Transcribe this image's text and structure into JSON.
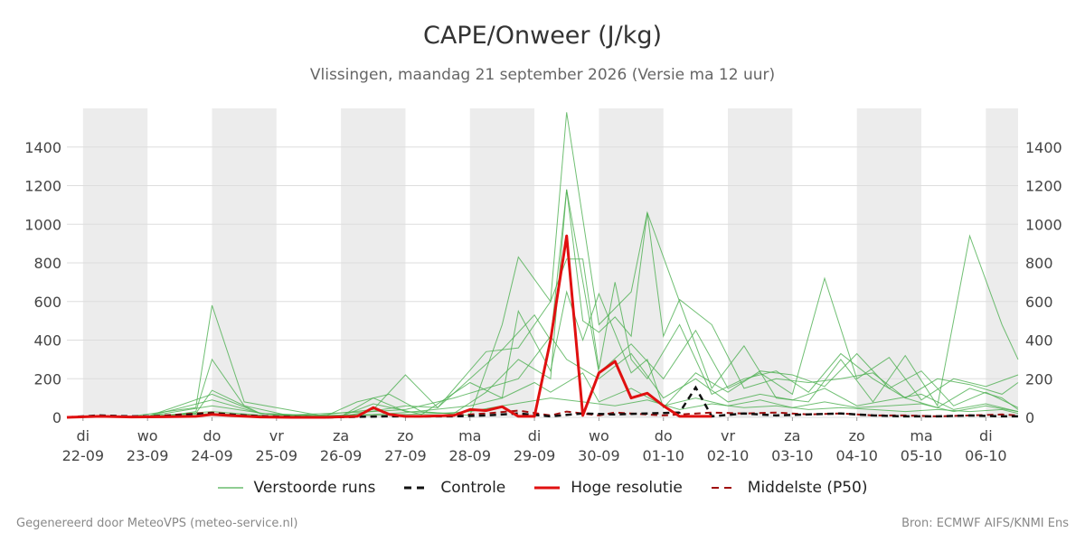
{
  "header": {
    "title": "CAPE/Onweer (J/kg)",
    "subtitle": "Vlissingen, maandag 21 september 2026 (Versie ma 12 uur)"
  },
  "footer": {
    "left": "Gegenereerd door MeteoVPS (meteo-service.nl)",
    "right": "Bron: ECMWF AIFS/KNMI Ens"
  },
  "colors": {
    "ensemble": "#4caf50",
    "control": "#111111",
    "high_res": "#e01010",
    "median": "#a01010",
    "night_band": "#ececec",
    "grid": "#dddddd"
  },
  "chart_data": {
    "type": "line",
    "title": "CAPE/Onweer (J/kg)",
    "subtitle": "Vlissingen, maandag 21 september 2026 (Versie ma 12 uur)",
    "x_unit": "days after 22-09 00:00",
    "xlim": [
      -0.25,
      14.5
    ],
    "ylim": [
      0,
      1600
    ],
    "yticks": [
      0,
      200,
      400,
      600,
      800,
      1000,
      1200,
      1400
    ],
    "grid": true,
    "legend_position": "bottom",
    "shaded_day_intervals": [
      [
        0,
        1
      ],
      [
        2,
        3
      ],
      [
        4,
        5
      ],
      [
        6,
        7
      ],
      [
        8,
        9
      ],
      [
        10,
        11
      ],
      [
        12,
        13
      ],
      [
        14,
        15
      ]
    ],
    "x_tick_labels": [
      {
        "day": "di",
        "date": "22-09"
      },
      {
        "day": "wo",
        "date": "23-09"
      },
      {
        "day": "do",
        "date": "24-09"
      },
      {
        "day": "vr",
        "date": "25-09"
      },
      {
        "day": "za",
        "date": "26-09"
      },
      {
        "day": "zo",
        "date": "27-09"
      },
      {
        "day": "ma",
        "date": "28-09"
      },
      {
        "day": "di",
        "date": "29-09"
      },
      {
        "day": "wo",
        "date": "30-09"
      },
      {
        "day": "do",
        "date": "01-10"
      },
      {
        "day": "vr",
        "date": "02-10"
      },
      {
        "day": "za",
        "date": "03-10"
      },
      {
        "day": "zo",
        "date": "04-10"
      },
      {
        "day": "ma",
        "date": "05-10"
      },
      {
        "day": "di",
        "date": "06-10"
      }
    ],
    "legend": [
      {
        "key": "ensemble",
        "label": "Verstoorde runs"
      },
      {
        "key": "control",
        "label": "Controle"
      },
      {
        "key": "high_res",
        "label": "Hoge resolutie"
      },
      {
        "key": "median",
        "label": "Middelste (P50)"
      }
    ],
    "series": [
      {
        "name": "Hoge resolutie",
        "style": "high_res",
        "x": [
          -0.25,
          0.25,
          0.75,
          1.25,
          1.75,
          2.0,
          2.25,
          2.75,
          3.25,
          3.75,
          4.25,
          4.5,
          4.75,
          5.0,
          5.25,
          5.75,
          6.0,
          6.25,
          6.5,
          6.75,
          7.0,
          7.25,
          7.5,
          7.75,
          8.0,
          8.25,
          8.5,
          8.75,
          9.0,
          9.25,
          9.5,
          9.75
        ],
        "y": [
          0,
          5,
          2,
          3,
          5,
          15,
          10,
          2,
          0,
          0,
          5,
          50,
          15,
          5,
          5,
          10,
          40,
          35,
          55,
          5,
          5,
          400,
          940,
          10,
          230,
          290,
          100,
          125,
          60,
          5,
          5,
          5
        ]
      },
      {
        "name": "Controle",
        "style": "control",
        "x": [
          -0.25,
          0.25,
          0.75,
          1.25,
          2.0,
          2.75,
          3.75,
          4.75,
          5.75,
          6.25,
          6.75,
          7.25,
          7.75,
          8.25,
          8.75,
          9.25,
          9.5,
          9.75,
          10.25,
          10.75,
          11.25,
          11.75,
          12.25,
          12.75,
          13.25,
          13.75,
          14.25,
          14.5
        ],
        "y": [
          0,
          10,
          5,
          5,
          20,
          5,
          0,
          5,
          5,
          10,
          20,
          5,
          20,
          15,
          20,
          25,
          155,
          5,
          20,
          10,
          15,
          20,
          10,
          5,
          5,
          10,
          5,
          5
        ]
      },
      {
        "name": "Middelste (P50)",
        "style": "median",
        "x": [
          -0.25,
          0.25,
          1.0,
          2.0,
          2.5,
          3.5,
          4.5,
          5.5,
          6.25,
          6.75,
          7.25,
          7.5,
          8.0,
          8.25,
          9.0,
          9.75,
          10.25,
          10.75,
          11.25,
          11.75,
          12.25,
          12.75,
          13.25,
          13.75,
          14.25,
          14.5
        ],
        "y": [
          0,
          5,
          5,
          25,
          10,
          0,
          5,
          5,
          20,
          35,
          10,
          30,
          10,
          25,
          10,
          25,
          20,
          25,
          15,
          20,
          10,
          10,
          5,
          10,
          15,
          10
        ]
      },
      {
        "name": "Verstoorde runs",
        "style": "ensemble",
        "x": [
          -0.25,
          0.25,
          1.25,
          1.75,
          2.0,
          2.5,
          3.25,
          4.0,
          4.5,
          5.0,
          5.75,
          6.25,
          6.75,
          7.25,
          7.5,
          8.0,
          8.5,
          9.0,
          9.5,
          10.0,
          10.5,
          11.0,
          11.5,
          12.0,
          12.5,
          13.0,
          13.5,
          14.0,
          14.5
        ],
        "y": [
          0,
          5,
          5,
          30,
          300,
          60,
          5,
          5,
          100,
          30,
          20,
          130,
          300,
          200,
          1180,
          230,
          380,
          200,
          450,
          150,
          230,
          120,
          720,
          200,
          310,
          90,
          200,
          160,
          220
        ]
      },
      {
        "name": "Verstoorde runs",
        "style": "ensemble",
        "x": [
          -0.25,
          0.75,
          1.75,
          2.0,
          2.5,
          3.75,
          4.25,
          4.75,
          5.25,
          6.0,
          6.5,
          6.75,
          7.25,
          7.5,
          8.0,
          8.5,
          8.75,
          9.25,
          9.75,
          10.25,
          10.75,
          11.25,
          11.75,
          12.25,
          12.75,
          13.25,
          13.75,
          14.25,
          14.5
        ],
        "y": [
          0,
          5,
          50,
          580,
          80,
          5,
          80,
          120,
          30,
          10,
          480,
          830,
          600,
          1580,
          480,
          650,
          1060,
          600,
          150,
          370,
          100,
          80,
          300,
          80,
          320,
          60,
          940,
          480,
          300
        ]
      },
      {
        "name": "Verstoorde runs",
        "style": "ensemble",
        "x": [
          -0.25,
          1.0,
          1.75,
          2.0,
          2.75,
          3.5,
          4.5,
          5.0,
          5.5,
          6.25,
          6.75,
          7.25,
          7.5,
          7.75,
          8.0,
          8.25,
          8.5,
          8.75,
          9.25,
          9.75,
          10.25,
          10.75,
          11.25,
          11.75,
          12.25,
          12.75,
          13.25,
          13.75,
          14.25,
          14.5
        ],
        "y": [
          0,
          5,
          20,
          140,
          20,
          5,
          40,
          220,
          50,
          340,
          360,
          600,
          820,
          820,
          250,
          700,
          300,
          200,
          480,
          120,
          200,
          240,
          130,
          330,
          200,
          100,
          50,
          150,
          100,
          40
        ]
      },
      {
        "name": "Verstoorde runs",
        "style": "ensemble",
        "x": [
          -0.25,
          1.0,
          2.0,
          2.75,
          4.0,
          5.0,
          5.5,
          6.0,
          6.5,
          7.0,
          7.25,
          7.5,
          7.75,
          8.0,
          8.25,
          8.5,
          8.75,
          9.0,
          9.25,
          9.75,
          10.25,
          10.75,
          11.25,
          11.75,
          12.25,
          12.75,
          13.25,
          13.75,
          14.25,
          14.5
        ],
        "y": [
          0,
          5,
          120,
          20,
          5,
          60,
          50,
          200,
          350,
          530,
          400,
          1180,
          500,
          440,
          520,
          420,
          1060,
          420,
          610,
          480,
          150,
          200,
          180,
          200,
          230,
          100,
          200,
          170,
          120,
          180
        ]
      },
      {
        "name": "Verstoorde runs",
        "style": "ensemble",
        "x": [
          -0.25,
          1.0,
          2.0,
          2.75,
          4.0,
          4.5,
          5.25,
          6.0,
          6.5,
          6.75,
          7.25,
          7.5,
          7.75,
          8.0,
          8.5,
          8.75,
          9.0,
          9.5,
          10.0,
          10.5,
          11.0,
          11.5,
          12.0,
          12.5,
          13.0,
          13.5,
          14.0,
          14.5
        ],
        "y": [
          0,
          5,
          90,
          20,
          5,
          70,
          15,
          180,
          100,
          550,
          240,
          650,
          400,
          640,
          230,
          300,
          50,
          230,
          130,
          240,
          220,
          160,
          330,
          150,
          240,
          60,
          130,
          50
        ]
      },
      {
        "name": "Verstoorde runs",
        "style": "ensemble",
        "x": [
          -0.25,
          1.0,
          2.0,
          3.0,
          4.5,
          5.0,
          5.75,
          6.25,
          6.75,
          7.25,
          7.5,
          8.0,
          8.5,
          9.0,
          9.5,
          10.0,
          10.5,
          11.0,
          11.5,
          12.0,
          12.5,
          13.0,
          13.5,
          14.0,
          14.5
        ],
        "y": [
          0,
          5,
          60,
          10,
          30,
          40,
          100,
          150,
          200,
          420,
          300,
          200,
          330,
          100,
          200,
          80,
          120,
          90,
          150,
          60,
          90,
          120,
          40,
          70,
          30
        ]
      },
      {
        "name": "Verstoorde runs",
        "style": "ensemble",
        "x": [
          -0.25,
          1.0,
          2.0,
          3.0,
          4.5,
          5.0,
          6.0,
          6.5,
          7.0,
          7.25,
          7.75,
          8.0,
          8.5,
          9.0,
          9.5,
          10.0,
          10.5,
          11.0,
          11.5,
          12.0,
          12.5,
          13.0,
          13.5,
          14.0,
          14.5
        ],
        "y": [
          0,
          5,
          30,
          5,
          15,
          25,
          60,
          100,
          180,
          130,
          230,
          80,
          150,
          60,
          100,
          60,
          90,
          50,
          80,
          50,
          60,
          70,
          30,
          60,
          30
        ]
      },
      {
        "name": "Verstoorde runs",
        "style": "ensemble",
        "x": [
          -0.25,
          1.0,
          2.0,
          3.0,
          4.5,
          5.5,
          6.0,
          6.5,
          7.25,
          7.75,
          8.25,
          8.75,
          9.25,
          9.75,
          10.25,
          10.75,
          11.25,
          11.75,
          12.25,
          12.75,
          13.25,
          13.75,
          14.25,
          14.5
        ],
        "y": [
          0,
          5,
          20,
          5,
          10,
          20,
          30,
          60,
          100,
          80,
          60,
          90,
          40,
          70,
          50,
          60,
          40,
          50,
          40,
          30,
          40,
          30,
          40,
          20
        ]
      }
    ]
  }
}
